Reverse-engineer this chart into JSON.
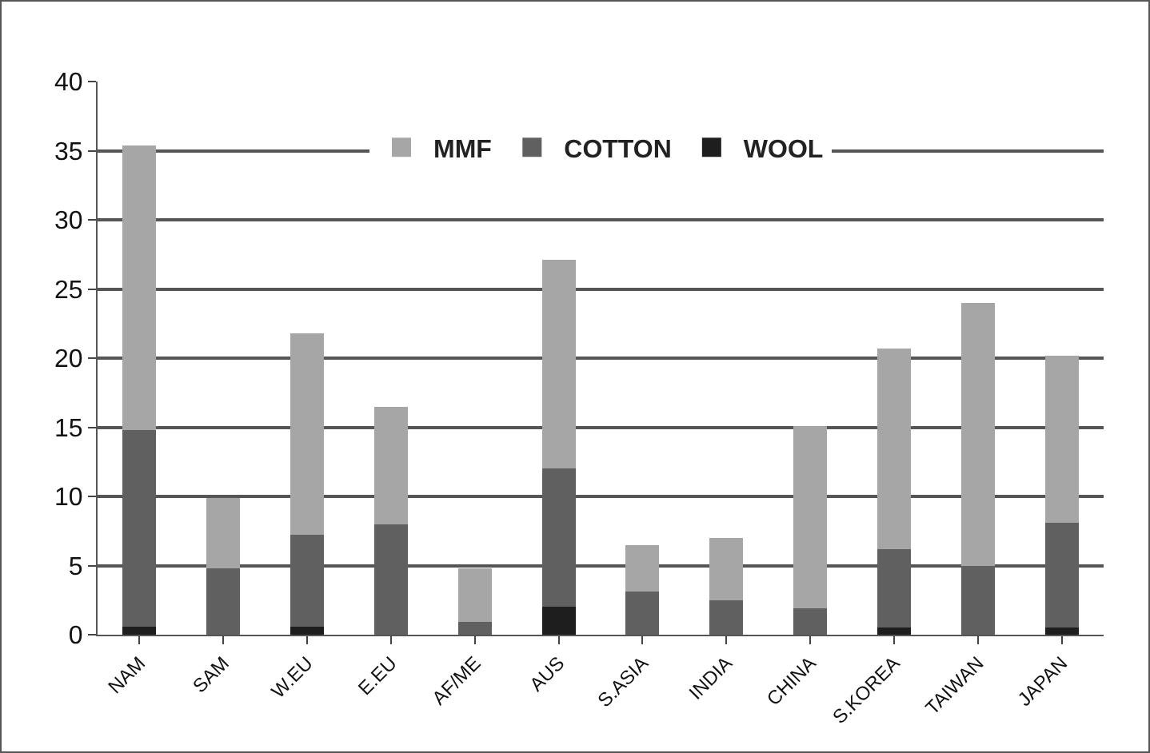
{
  "chart_data": {
    "type": "bar",
    "stacked": true,
    "categories": [
      "NAM",
      "SAM",
      "W.EU",
      "E.EU",
      "AF/ME",
      "AUS",
      "S.ASIA",
      "INDIA",
      "CHINA",
      "S.KOREA",
      "TAIWAN",
      "JAPAN"
    ],
    "series": [
      {
        "name": "WOOL",
        "color": "#1e1e1e",
        "values": [
          0.6,
          0,
          0.6,
          0,
          0,
          2,
          0,
          0,
          0,
          0.5,
          0,
          0.5
        ]
      },
      {
        "name": "COTTON",
        "color": "#606060",
        "values": [
          14.2,
          4.8,
          6.6,
          8,
          0.9,
          10,
          3.1,
          2.5,
          1.9,
          5.7,
          5,
          7.6
        ]
      },
      {
        "name": "MMF",
        "color": "#a6a6a6",
        "values": [
          20.6,
          5.1,
          14.6,
          8.5,
          3.9,
          15.1,
          3.4,
          4.5,
          13.2,
          14.5,
          19,
          12.1
        ]
      }
    ],
    "ylim": [
      0,
      40
    ],
    "yticks": [
      0,
      5,
      10,
      15,
      20,
      25,
      30,
      35,
      40
    ],
    "grid": "y",
    "legend": "top"
  }
}
